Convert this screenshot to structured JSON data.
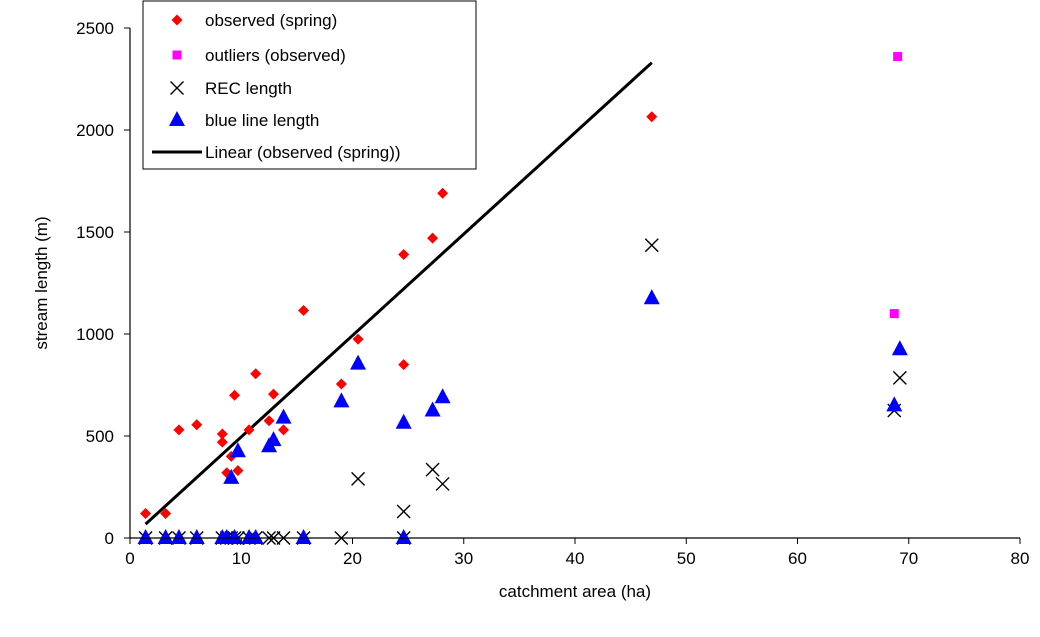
{
  "chart_data": {
    "type": "scatter",
    "title": "",
    "xlabel": "catchment area (ha)",
    "ylabel": "stream length (m)",
    "xlim": [
      0,
      80
    ],
    "ylim": [
      0,
      2500
    ],
    "xticks": [
      0,
      10,
      20,
      30,
      40,
      50,
      60,
      70,
      80
    ],
    "yticks": [
      0,
      500,
      1000,
      1500,
      2000,
      2500
    ],
    "grid": false,
    "legend_position": "top-left",
    "series": [
      {
        "name": "observed (spring)",
        "marker": "diamond",
        "color": "#ff0000",
        "points": [
          [
            1.4,
            120
          ],
          [
            3.2,
            120
          ],
          [
            4.4,
            530
          ],
          [
            6.0,
            555
          ],
          [
            8.3,
            510
          ],
          [
            8.3,
            470
          ],
          [
            8.7,
            320
          ],
          [
            9.1,
            400
          ],
          [
            9.4,
            700
          ],
          [
            9.7,
            330
          ],
          [
            10.7,
            530
          ],
          [
            11.3,
            805
          ],
          [
            12.5,
            575
          ],
          [
            12.9,
            705
          ],
          [
            13.8,
            530
          ],
          [
            15.6,
            1115
          ],
          [
            19.0,
            755
          ],
          [
            20.5,
            975
          ],
          [
            24.6,
            1390
          ],
          [
            24.6,
            850
          ],
          [
            27.2,
            1470
          ],
          [
            28.1,
            1690
          ],
          [
            46.9,
            2065
          ]
        ]
      },
      {
        "name": "outliers (observed)",
        "marker": "square",
        "color": "#ff00ff",
        "points": [
          [
            69.0,
            2360
          ],
          [
            68.7,
            1100
          ]
        ]
      },
      {
        "name": "REC length",
        "marker": "x",
        "color": "#000000",
        "points": [
          [
            1.4,
            0
          ],
          [
            3.2,
            0
          ],
          [
            4.4,
            0
          ],
          [
            6.0,
            0
          ],
          [
            8.3,
            0
          ],
          [
            8.7,
            0
          ],
          [
            9.1,
            0
          ],
          [
            9.4,
            0
          ],
          [
            9.7,
            0
          ],
          [
            10.7,
            0
          ],
          [
            11.3,
            0
          ],
          [
            12.5,
            0
          ],
          [
            12.9,
            0
          ],
          [
            13.8,
            0
          ],
          [
            15.6,
            0
          ],
          [
            19.0,
            0
          ],
          [
            20.5,
            290
          ],
          [
            24.6,
            130
          ],
          [
            24.6,
            0
          ],
          [
            27.2,
            335
          ],
          [
            28.1,
            265
          ],
          [
            46.9,
            1435
          ],
          [
            68.7,
            625
          ],
          [
            69.2,
            785
          ]
        ]
      },
      {
        "name": "blue line length",
        "marker": "triangle",
        "color": "#0000ff",
        "points": [
          [
            1.4,
            0
          ],
          [
            3.2,
            0
          ],
          [
            4.4,
            0
          ],
          [
            6.0,
            0
          ],
          [
            8.3,
            0
          ],
          [
            8.7,
            0
          ],
          [
            9.1,
            295
          ],
          [
            9.4,
            0
          ],
          [
            9.7,
            425
          ],
          [
            10.7,
            0
          ],
          [
            11.3,
            0
          ],
          [
            12.5,
            450
          ],
          [
            12.9,
            480
          ],
          [
            13.8,
            590
          ],
          [
            15.6,
            0
          ],
          [
            19.0,
            670
          ],
          [
            20.5,
            855
          ],
          [
            24.6,
            565
          ],
          [
            24.6,
            0
          ],
          [
            27.2,
            625
          ],
          [
            28.1,
            690
          ],
          [
            46.9,
            1175
          ],
          [
            68.7,
            650
          ],
          [
            69.2,
            925
          ]
        ]
      },
      {
        "name": "Linear (observed (spring))",
        "marker": "line",
        "color": "#000000",
        "points": [
          [
            1.4,
            68
          ],
          [
            46.9,
            2330
          ]
        ]
      }
    ]
  }
}
